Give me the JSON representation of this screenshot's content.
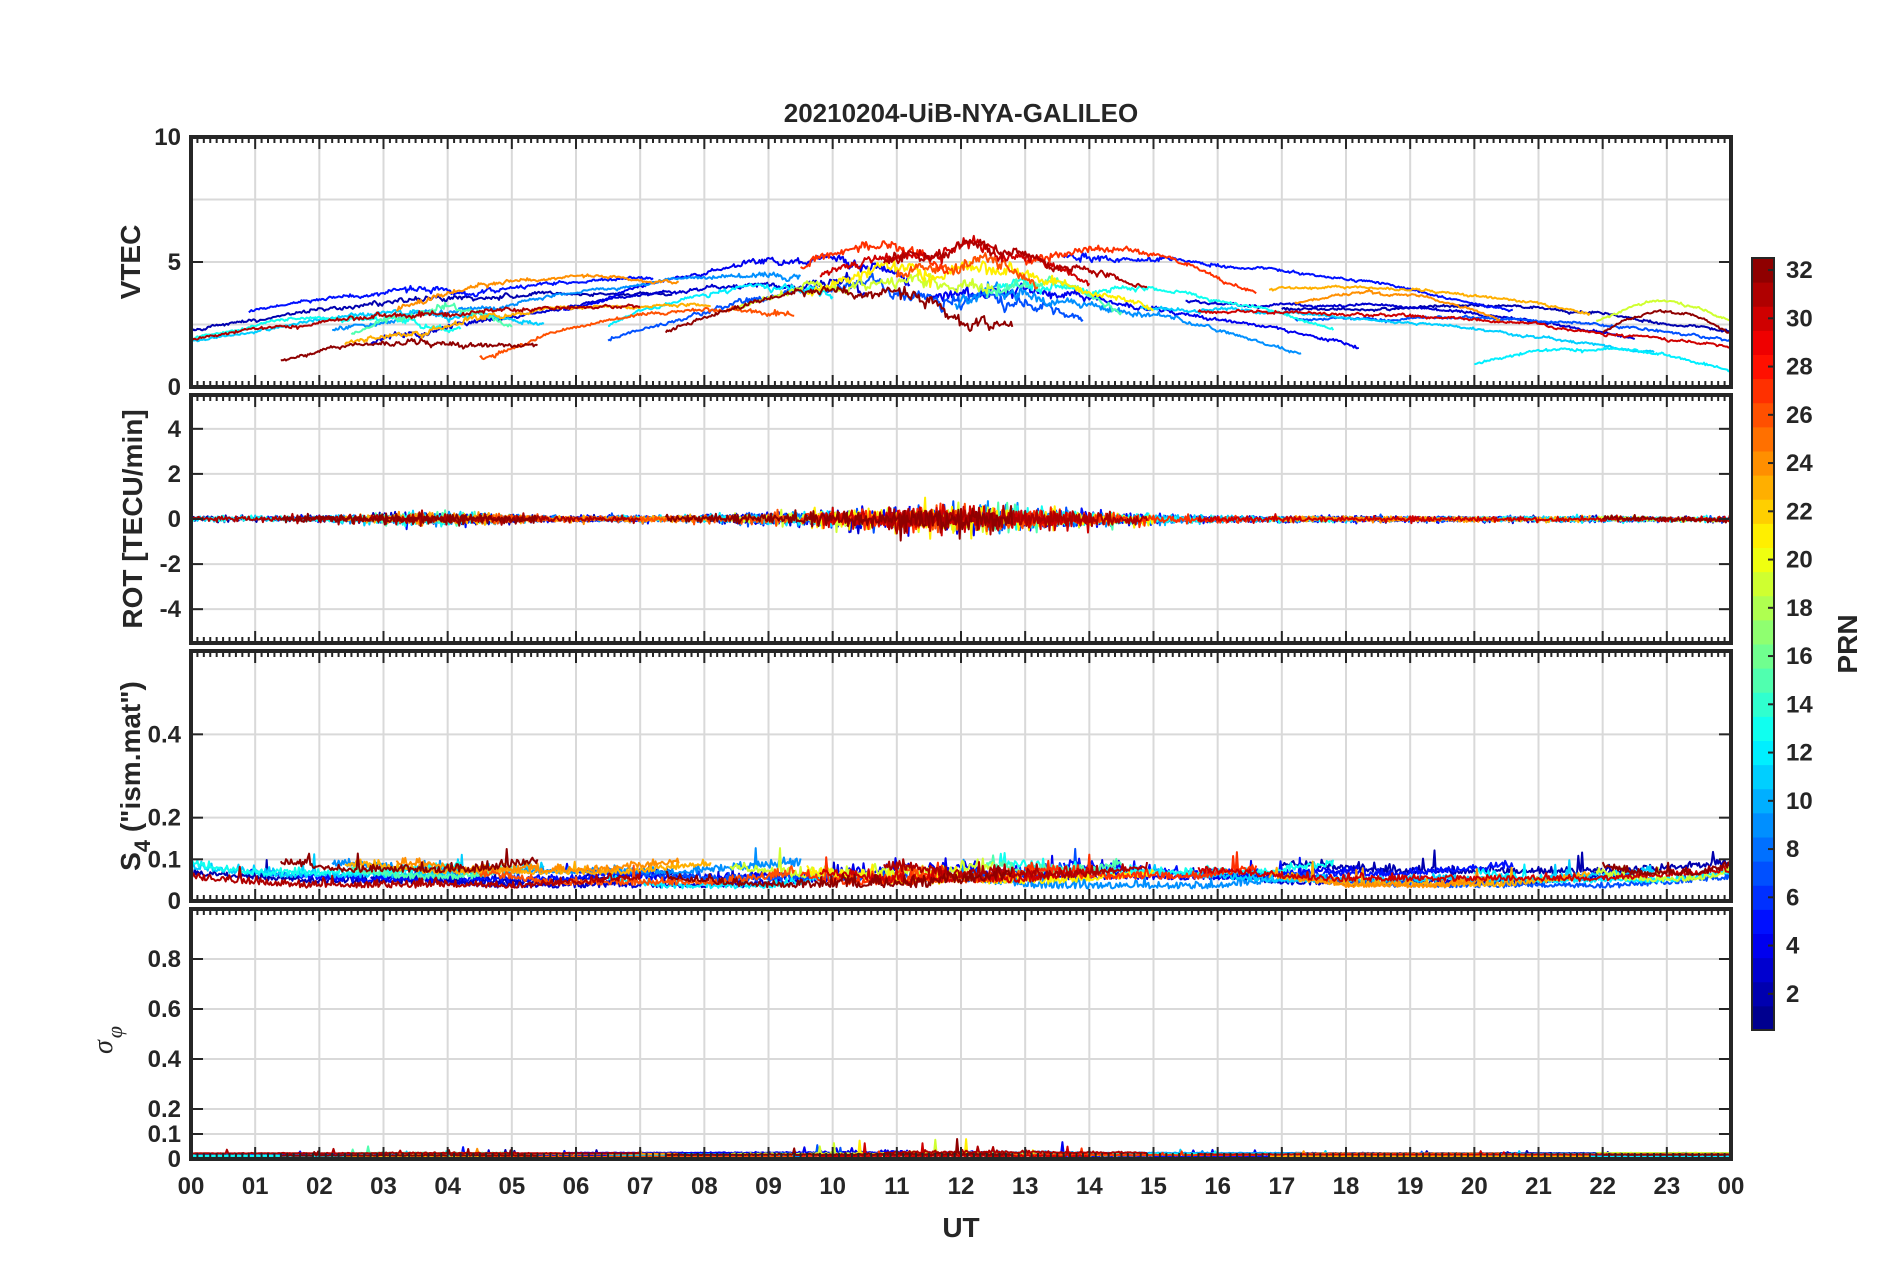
{
  "chart_data": [
    {
      "type": "line",
      "title": "20210204-UiB-NYA-GALILEO",
      "ylabel": "VTEC",
      "ylim": [
        0,
        10
      ],
      "yticks": [
        "0",
        "5",
        "10"
      ],
      "yticks_values": [
        0,
        5,
        10
      ],
      "ygrid": [
        0,
        2.5,
        5,
        7.5,
        10
      ],
      "series_profile": "vtec"
    },
    {
      "type": "line",
      "ylabel": "ROT [TECU/min]",
      "ylim": [
        -5.5,
        5.5
      ],
      "yticks": [
        "-4",
        "-2",
        "0",
        "2",
        "4"
      ],
      "yticks_values": [
        -4,
        -2,
        0,
        2,
        4
      ],
      "ygrid": [
        -4,
        -2,
        0,
        2,
        4
      ],
      "series_profile": "rot"
    },
    {
      "type": "line",
      "ylabel_main": "S",
      "ylabel_sub": "4",
      "ylabel_rest": " (\"ism.mat\")",
      "ylim": [
        0,
        0.6
      ],
      "yticks": [
        "0",
        "0.1",
        "0.2",
        "0.4"
      ],
      "yticks_values": [
        0,
        0.1,
        0.2,
        0.4
      ],
      "ygrid": [
        0,
        0.1,
        0.2,
        0.4,
        0.6
      ],
      "series_profile": "s4"
    },
    {
      "type": "line",
      "ylabel_main": "σ",
      "ylabel_sub": "φ",
      "ylim": [
        0,
        1
      ],
      "yticks": [
        "0",
        "0.1",
        "0.2",
        "0.4",
        "0.6",
        "0.8"
      ],
      "yticks_values": [
        0,
        0.1,
        0.2,
        0.4,
        0.6,
        0.8
      ],
      "ygrid": [
        0,
        0.1,
        0.2,
        0.4,
        0.6,
        0.8,
        1.0
      ],
      "series_profile": "sigma",
      "xlabel": "UT",
      "xticks": [
        "00",
        "01",
        "02",
        "03",
        "04",
        "05",
        "06",
        "07",
        "08",
        "09",
        "10",
        "11",
        "12",
        "13",
        "14",
        "15",
        "16",
        "17",
        "18",
        "19",
        "20",
        "21",
        "22",
        "23",
        "00"
      ]
    }
  ],
  "xlim_hours": [
    0,
    24
  ],
  "colorbar": {
    "label": "PRN",
    "range": [
      1,
      32
    ],
    "ticks": [
      "2",
      "4",
      "6",
      "8",
      "10",
      "12",
      "14",
      "16",
      "18",
      "20",
      "22",
      "24",
      "26",
      "28",
      "30",
      "32"
    ],
    "ticks_values": [
      2,
      4,
      6,
      8,
      10,
      12,
      14,
      16,
      18,
      20,
      22,
      24,
      26,
      28,
      30,
      32
    ]
  },
  "satellites": [
    {
      "prn": 2,
      "windows": [
        [
          0,
          7.5
        ],
        [
          17.0,
          24
        ]
      ]
    },
    {
      "prn": 3,
      "windows": [
        [
          2.8,
          10.5
        ],
        [
          15.5,
          22.5
        ]
      ]
    },
    {
      "prn": 4,
      "windows": [
        [
          5.8,
          11.2
        ],
        [
          11.5,
          18.2
        ]
      ]
    },
    {
      "prn": 5,
      "windows": [
        [
          0.9,
          7.2
        ],
        [
          13.6,
          20.6
        ]
      ]
    },
    {
      "prn": 7,
      "windows": [
        [
          6.5,
          13.9
        ],
        [
          17.2,
          24
        ]
      ]
    },
    {
      "prn": 9,
      "windows": [
        [
          2.2,
          9.5
        ],
        [
          11.9,
          17.3
        ]
      ]
    },
    {
      "prn": 11,
      "windows": [
        [
          0,
          5.5
        ],
        [
          14.8,
          22.8
        ]
      ]
    },
    {
      "prn": 12,
      "windows": [
        [
          6.5,
          10.0
        ],
        [
          20.0,
          24
        ]
      ]
    },
    {
      "prn": 13,
      "windows": [
        [
          0,
          4.2
        ],
        [
          12.6,
          17.8
        ]
      ]
    },
    {
      "prn": 15,
      "windows": [
        [
          2.5,
          5.0
        ],
        [
          12.4,
          14.5
        ]
      ]
    },
    {
      "prn": 19,
      "windows": [
        [
          8.4,
          12.5
        ],
        [
          21.9,
          24
        ]
      ]
    },
    {
      "prn": 21,
      "windows": [
        [
          9.6,
          15.0
        ]
      ]
    },
    {
      "prn": 23,
      "windows": [
        [
          2.4,
          8.1
        ],
        [
          16.8,
          21.8
        ]
      ]
    },
    {
      "prn": 24,
      "windows": [
        [
          3.2,
          7.6
        ],
        [
          17.2,
          20.4
        ]
      ]
    },
    {
      "prn": 26,
      "windows": [
        [
          4.5,
          9.4
        ],
        [
          11.0,
          13.2
        ]
      ]
    },
    {
      "prn": 27,
      "windows": [
        [
          9.5,
          11.8
        ],
        [
          13.0,
          16.6
        ]
      ]
    },
    {
      "prn": 30,
      "windows": [
        [
          9.8,
          14.0
        ],
        [
          15.7,
          24
        ]
      ]
    },
    {
      "prn": 31,
      "windows": [
        [
          0,
          7.0
        ],
        [
          10.8,
          14.9
        ]
      ]
    },
    {
      "prn": 32,
      "windows": [
        [
          1.4,
          5.4
        ],
        [
          7.4,
          12.8
        ],
        [
          22.0,
          24
        ]
      ]
    }
  ]
}
